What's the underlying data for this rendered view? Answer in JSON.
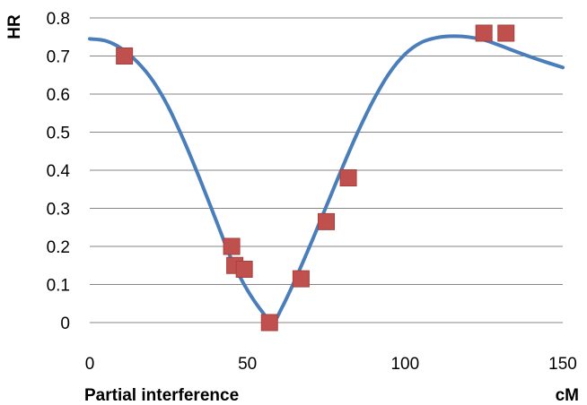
{
  "chart_data": {
    "type": "scatter",
    "xlabel": "Partial interference",
    "xunit": "cM",
    "ylabel": "HR",
    "xlim": [
      0,
      150
    ],
    "ylim": [
      0,
      0.8
    ],
    "x_ticks": [
      "0",
      "50",
      "100",
      "150"
    ],
    "y_ticks": [
      "0",
      "0.1",
      "0.2",
      "0.3",
      "0.4",
      "0.5",
      "0.6",
      "0.7",
      "0.8"
    ],
    "grid": "horizontal",
    "colors": {
      "curve": "#4a7ebb",
      "points": "#c0504d",
      "grid": "#868686"
    },
    "series": [
      {
        "type": "scatter",
        "marker": "square",
        "points": [
          {
            "x": 11,
            "y": 0.7
          },
          {
            "x": 45,
            "y": 0.2
          },
          {
            "x": 46,
            "y": 0.15
          },
          {
            "x": 49,
            "y": 0.14
          },
          {
            "x": 57,
            "y": 0.0
          },
          {
            "x": 67,
            "y": 0.115
          },
          {
            "x": 75,
            "y": 0.265
          },
          {
            "x": 82,
            "y": 0.38
          },
          {
            "x": 125,
            "y": 0.76
          },
          {
            "x": 132,
            "y": 0.76
          }
        ]
      },
      {
        "type": "line",
        "smooth": true,
        "points": [
          {
            "x": 0,
            "y": 0.745
          },
          {
            "x": 5,
            "y": 0.74
          },
          {
            "x": 10,
            "y": 0.72
          },
          {
            "x": 15,
            "y": 0.685
          },
          {
            "x": 20,
            "y": 0.635
          },
          {
            "x": 25,
            "y": 0.565
          },
          {
            "x": 30,
            "y": 0.475
          },
          {
            "x": 35,
            "y": 0.375
          },
          {
            "x": 40,
            "y": 0.27
          },
          {
            "x": 45,
            "y": 0.165
          },
          {
            "x": 50,
            "y": 0.085
          },
          {
            "x": 55,
            "y": 0.025
          },
          {
            "x": 58,
            "y": 0.0
          },
          {
            "x": 61,
            "y": 0.04
          },
          {
            "x": 65,
            "y": 0.11
          },
          {
            "x": 70,
            "y": 0.205
          },
          {
            "x": 75,
            "y": 0.305
          },
          {
            "x": 80,
            "y": 0.405
          },
          {
            "x": 85,
            "y": 0.5
          },
          {
            "x": 90,
            "y": 0.585
          },
          {
            "x": 95,
            "y": 0.655
          },
          {
            "x": 100,
            "y": 0.705
          },
          {
            "x": 105,
            "y": 0.735
          },
          {
            "x": 110,
            "y": 0.748
          },
          {
            "x": 115,
            "y": 0.752
          },
          {
            "x": 120,
            "y": 0.75
          },
          {
            "x": 125,
            "y": 0.742
          },
          {
            "x": 130,
            "y": 0.728
          },
          {
            "x": 135,
            "y": 0.712
          },
          {
            "x": 140,
            "y": 0.697
          },
          {
            "x": 145,
            "y": 0.683
          },
          {
            "x": 150,
            "y": 0.67
          }
        ]
      }
    ]
  }
}
